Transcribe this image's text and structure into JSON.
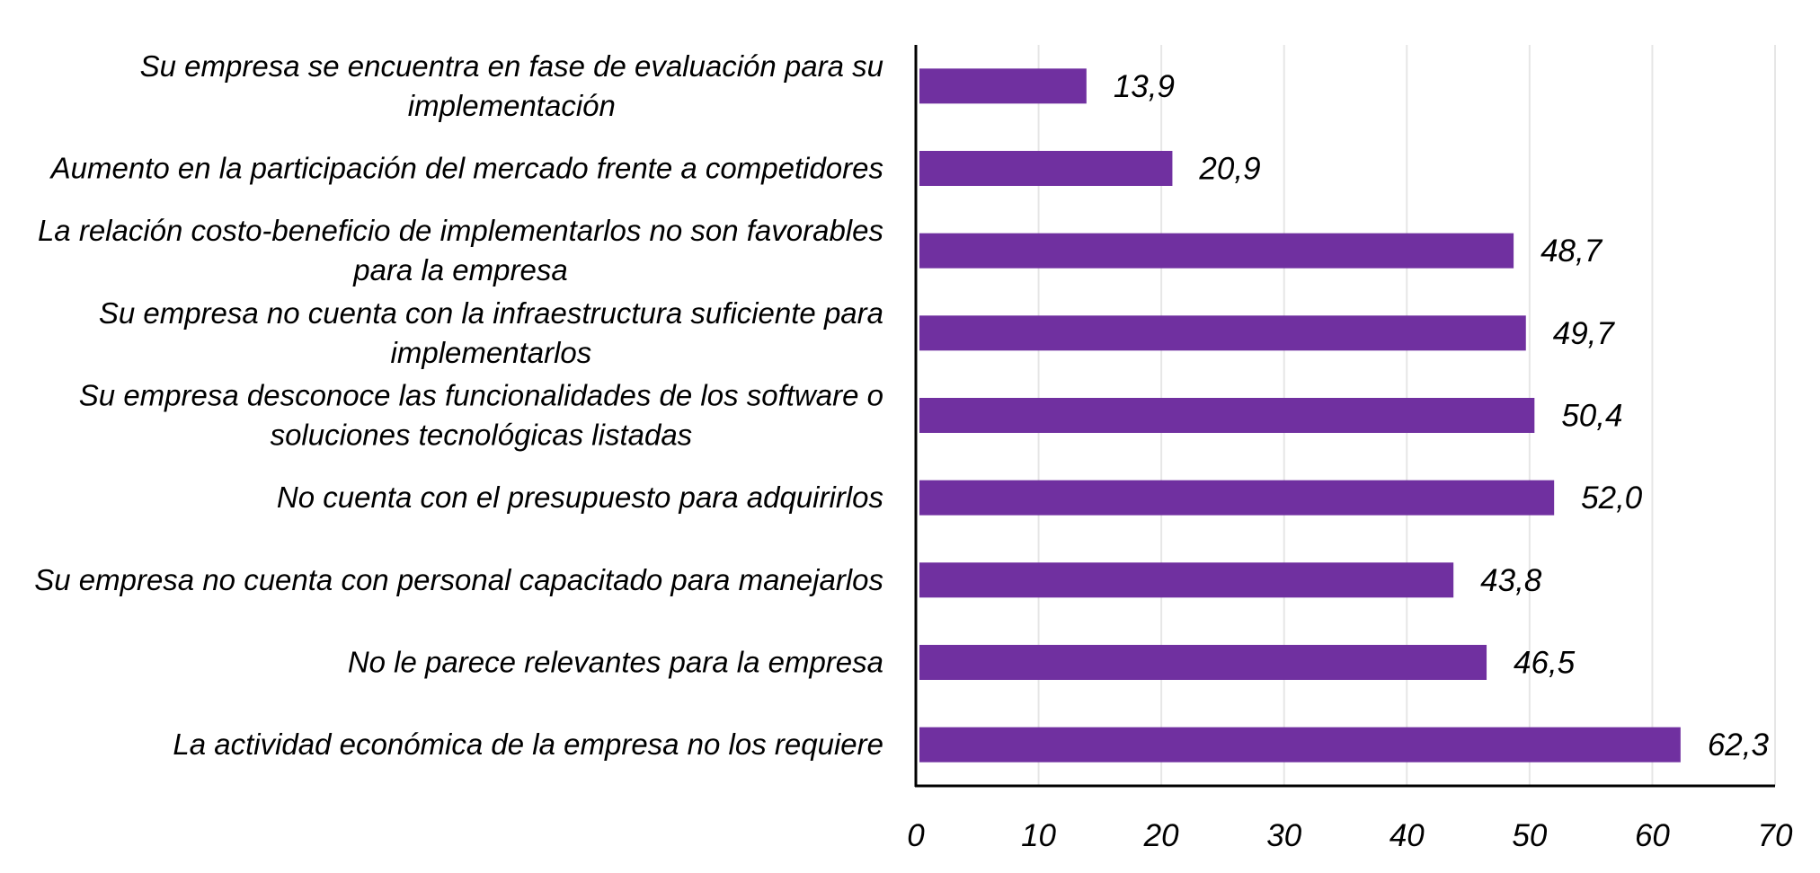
{
  "chart_data": {
    "type": "bar",
    "orientation": "horizontal",
    "title": "",
    "xlabel": "",
    "ylabel": "",
    "xlim": [
      0,
      70
    ],
    "xticks": [
      0,
      10,
      20,
      30,
      40,
      50,
      60,
      70
    ],
    "xtick_labels": [
      "0",
      "10",
      "20",
      "30",
      "40",
      "50",
      "60",
      "70"
    ],
    "grid": "vertical",
    "legend": "none",
    "bar_color": "#7030A0",
    "categories": [
      [
        "Su empresa se encuentra en fase de evaluación para su",
        "implementación"
      ],
      [
        "Aumento en la participación del mercado frente a competidores"
      ],
      [
        "La relación costo-beneficio de implementarlos no son favorables",
        "para la empresa"
      ],
      [
        "Su empresa no cuenta con la infraestructura suficiente para",
        "implementarlos"
      ],
      [
        "Su empresa desconoce las funcionalidades de los software o",
        "soluciones tecnológicas listadas"
      ],
      [
        "No cuenta con el presupuesto para adquirirlos"
      ],
      [
        "Su empresa no cuenta con personal capacitado para manejarlos"
      ],
      [
        "No le parece relevantes para la empresa"
      ],
      [
        "La actividad económica de la empresa no los requiere"
      ]
    ],
    "values": [
      13.9,
      20.9,
      48.7,
      49.7,
      50.4,
      52.0,
      43.8,
      46.5,
      62.3
    ],
    "value_labels": [
      "13,9",
      "20,9",
      "48,7",
      "49,7",
      "50,4",
      "52,0",
      "43,8",
      "46,5",
      "62,3"
    ]
  }
}
